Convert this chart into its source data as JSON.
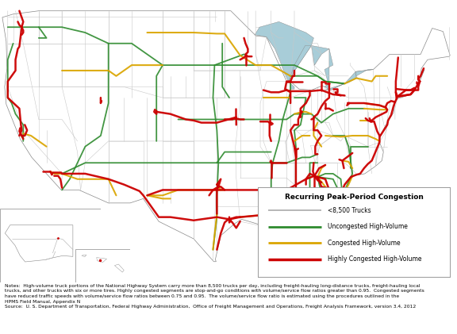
{
  "legend_title": "Recurring Peak-Period Congestion",
  "legend_items": [
    {
      "label": "<8,500 Trucks",
      "color": "#aaaaaa",
      "linewidth": 1.2
    },
    {
      "label": "Uncongested High-Volume",
      "color": "#2e8b2e",
      "linewidth": 2.0
    },
    {
      "label": "Congested High-Volume",
      "color": "#daa500",
      "linewidth": 2.0
    },
    {
      "label": "Highly Congested High-Volume",
      "color": "#cc0000",
      "linewidth": 2.5
    }
  ],
  "map_ocean_color": "#a8cdd8",
  "land_color": "#ffffff",
  "border_color": "#aaaaaa",
  "road_gray": "#bbbbbb",
  "green_color": "#2e8b2e",
  "yellow_color": "#daa500",
  "red_color": "#cc0000",
  "notes_text": "Notes:  High-volume truck portions of the National Highway System carry more than 8,500 trucks per day, including freight-hauling long-distance trucks, freight-hauling local\ntrucks, and other trucks with six or more tires. Highly congested segments are stop-and-go conditions with volume/service flow ratios greater than 0.95.  Congested segments\nhave reduced traffic speeds with volume/service flow ratios between 0.75 and 0.95.  The volume/service flow ratio is estimated using the procedures outlined in the\nHPMS Field Manual, Appendix N",
  "source_text": "Source:  U. S. Department of Transportation, Federal Highway Administration,  Office of Freight Management and Operations, Freight Analysis Framework, version 3.4, 2012",
  "fig_width": 5.76,
  "fig_height": 4.21,
  "dpi": 100
}
